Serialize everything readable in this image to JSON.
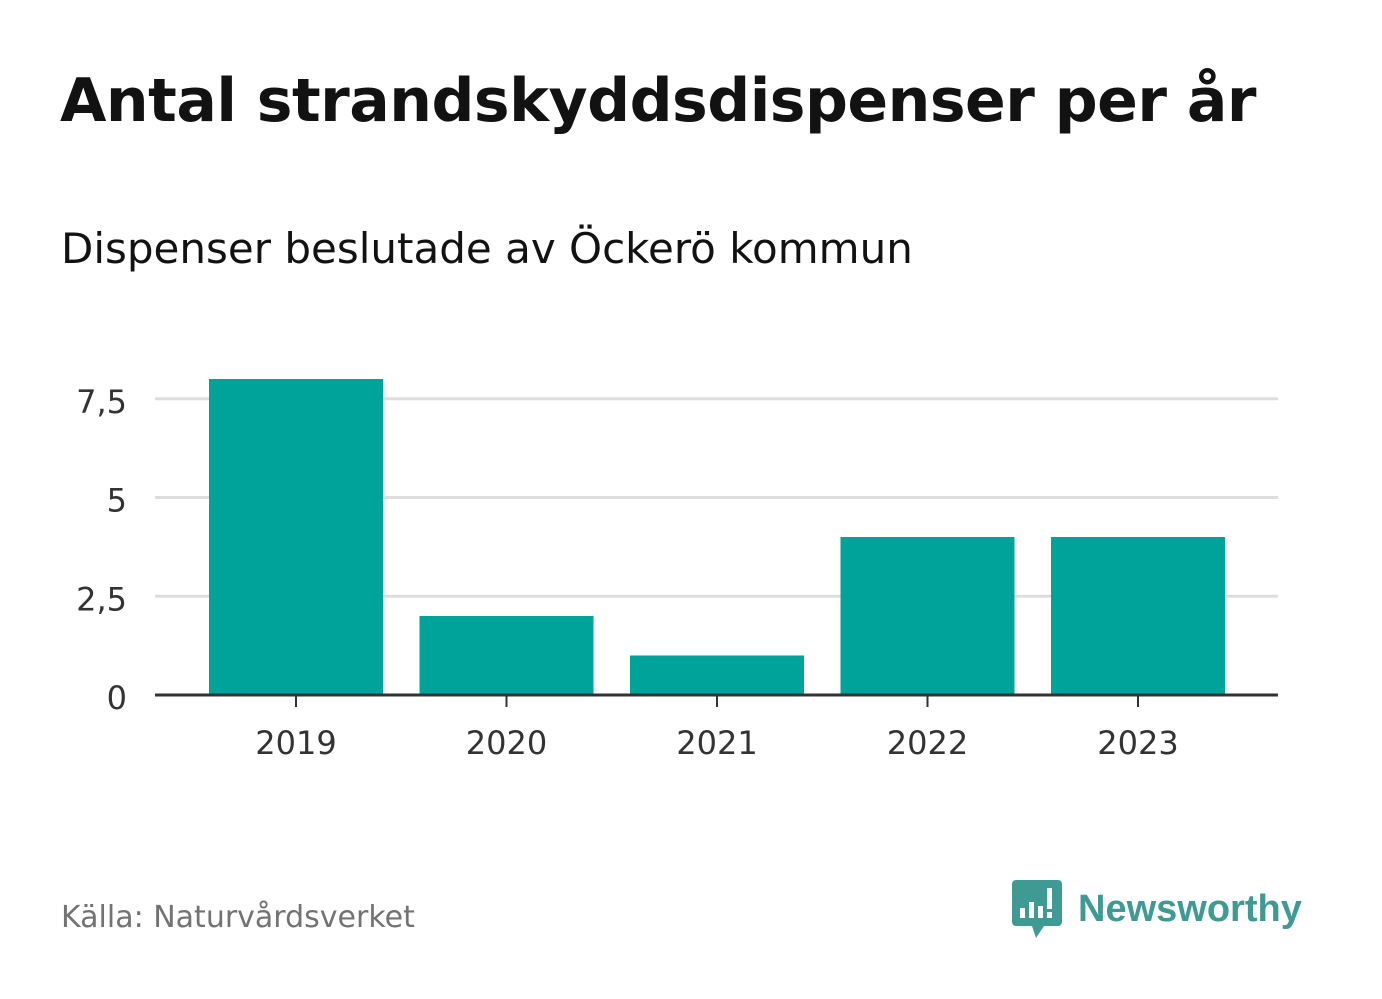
{
  "header": {
    "title": "Antal strandskyddsdispenser per år",
    "subtitle": "Dispenser beslutade av Öckerö kommun"
  },
  "footer": {
    "source": "Källa: Naturvårdsverket",
    "brand": "Newsworthy",
    "brand_icon": "newsworthy-logo-icon"
  },
  "colors": {
    "bar": "#00a39a",
    "grid": "#dddddd",
    "axis": "#333333",
    "brand": "#3f9a94"
  },
  "chart_data": {
    "type": "bar",
    "title": "Antal strandskyddsdispenser per år",
    "subtitle": "Dispenser beslutade av Öckerö kommun",
    "categories": [
      "2019",
      "2020",
      "2021",
      "2022",
      "2023"
    ],
    "values": [
      8,
      2,
      1,
      4,
      4
    ],
    "xlabel": "",
    "ylabel": "",
    "ylim": [
      0,
      8
    ],
    "yticks": [
      0,
      2.5,
      5,
      7.5
    ],
    "ytick_labels": [
      "0",
      "2,5",
      "5",
      "7,5"
    ],
    "grid": true,
    "legend": "none"
  }
}
